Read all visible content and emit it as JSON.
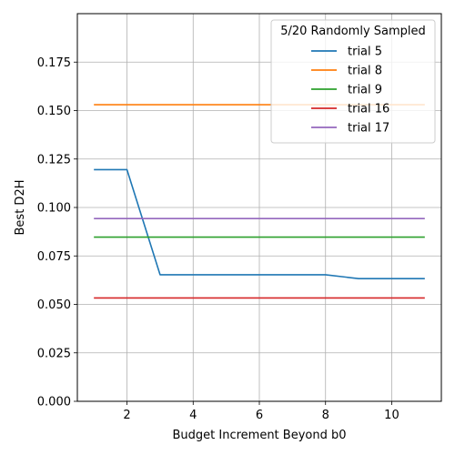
{
  "chart_data": {
    "type": "line",
    "xlabel": "Budget Increment Beyond b0",
    "ylabel": "Best D2H",
    "xlim": [
      0.5,
      11.5
    ],
    "ylim": [
      0,
      0.2
    ],
    "x_ticks": [
      2,
      4,
      6,
      8,
      10
    ],
    "y_ticks": [
      0.0,
      0.025,
      0.05,
      0.075,
      0.1,
      0.125,
      0.15,
      0.175
    ],
    "y_tick_labels": [
      "0.000",
      "0.025",
      "0.050",
      "0.075",
      "0.100",
      "0.125",
      "0.150",
      "0.175"
    ],
    "grid": true,
    "legend": {
      "title": "5/20 Randomly Sampled",
      "placement": "top-right"
    },
    "x": [
      1,
      2,
      3,
      4,
      5,
      6,
      7,
      8,
      9,
      10,
      11
    ],
    "series": [
      {
        "name": "trial 5",
        "color": "#1f77b4",
        "values": [
          0.1195,
          0.1195,
          0.0653,
          0.0653,
          0.0653,
          0.0653,
          0.0653,
          0.0653,
          0.0633,
          0.0633,
          0.0633
        ]
      },
      {
        "name": "trial 8",
        "color": "#ff7f0e",
        "values": [
          0.153,
          0.153,
          0.153,
          0.153,
          0.153,
          0.153,
          0.153,
          0.153,
          0.153,
          0.153,
          0.153
        ]
      },
      {
        "name": "trial 9",
        "color": "#2ca02c",
        "values": [
          0.0847,
          0.0847,
          0.0847,
          0.0847,
          0.0847,
          0.0847,
          0.0847,
          0.0847,
          0.0847,
          0.0847,
          0.0847
        ]
      },
      {
        "name": "trial 16",
        "color": "#d62728",
        "values": [
          0.0533,
          0.0533,
          0.0533,
          0.0533,
          0.0533,
          0.0533,
          0.0533,
          0.0533,
          0.0533,
          0.0533,
          0.0533
        ]
      },
      {
        "name": "trial 17",
        "color": "#9467bd",
        "values": [
          0.0943,
          0.0943,
          0.0943,
          0.0943,
          0.0943,
          0.0943,
          0.0943,
          0.0943,
          0.0943,
          0.0943,
          0.0943
        ]
      }
    ]
  }
}
